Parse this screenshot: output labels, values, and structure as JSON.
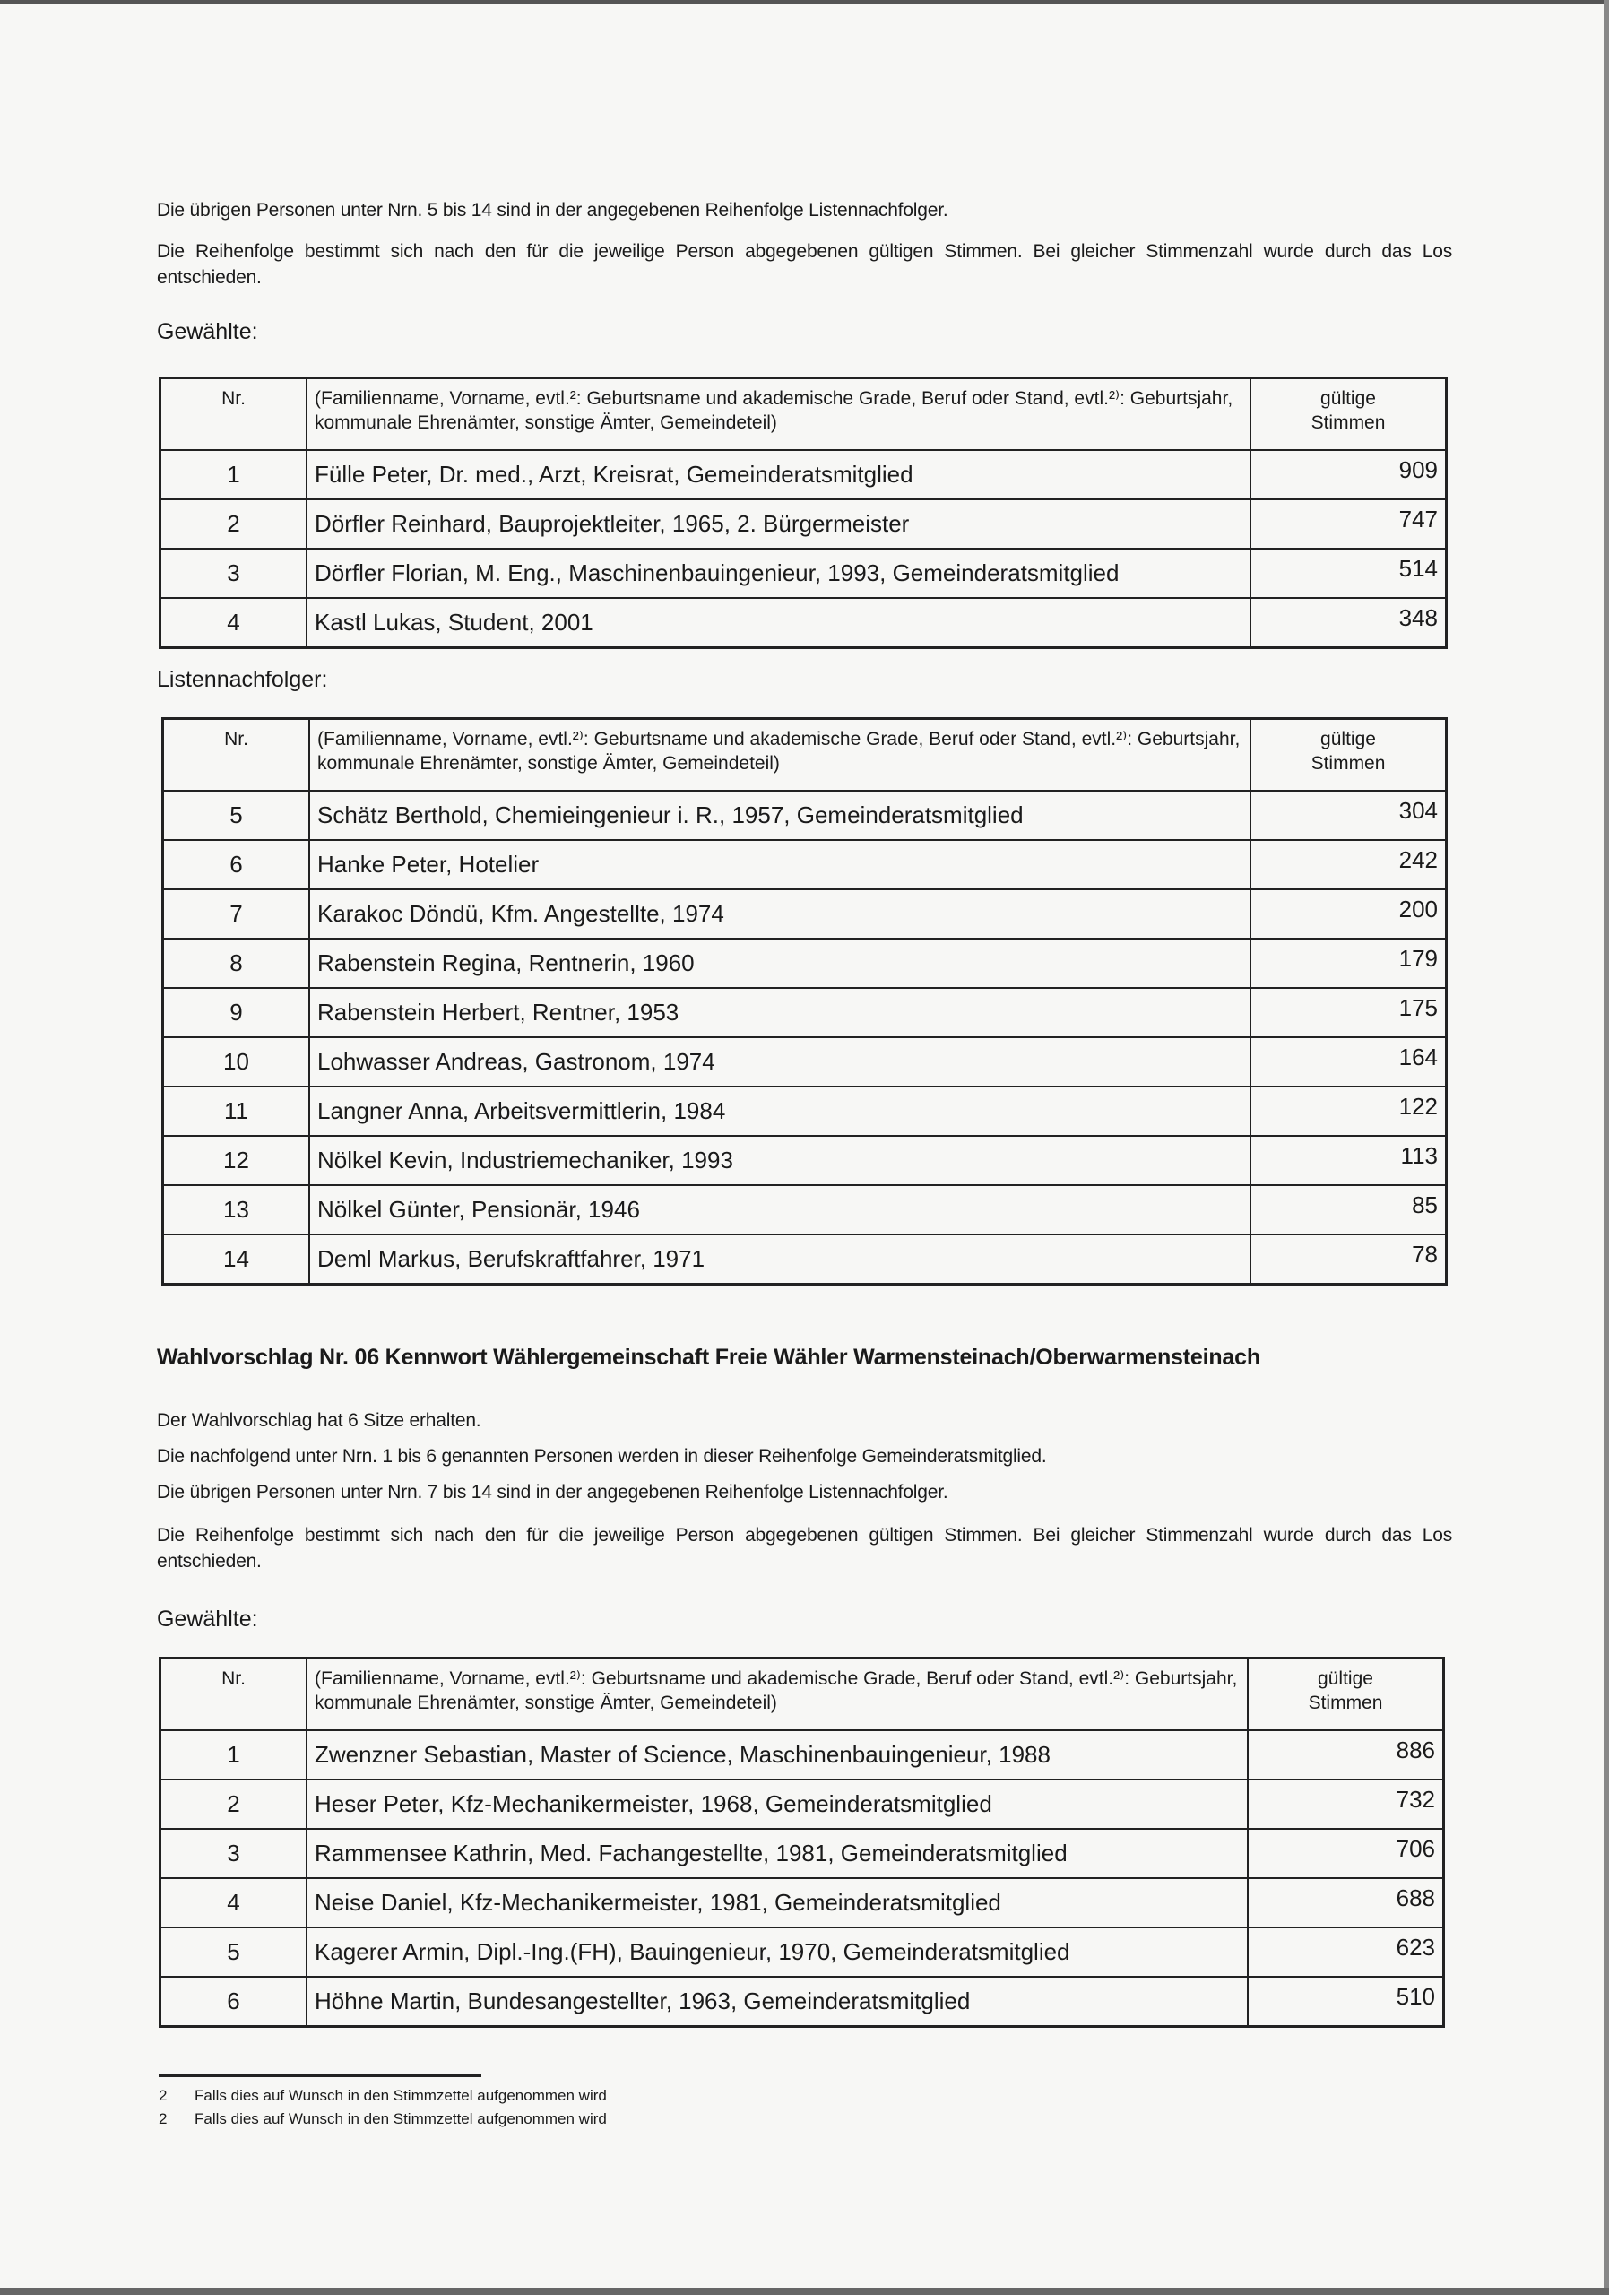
{
  "section_prev": {
    "para1": "Die übrigen Personen unter Nrn. 5 bis 14 sind in der angegebenen Reihenfolge Listennachfolger.",
    "para2": "Die Reihenfolge bestimmt sich nach den für die jeweilige Person abgegebenen gültigen Stimmen. Bei gleicher Stimmenzahl wurde durch das Los entschieden.",
    "elected_label": "Gewählte:",
    "successors_label": "Listennachfolger:"
  },
  "table_header": {
    "nr": "Nr.",
    "desc": "(Familienname, Vorname, evtl.²: Geburtsname und akademische Grade, Beruf oder Stand, evtl.²⁾: Geburtsjahr, kommunale Ehrenämter, sonstige Ämter, Gemeindeteil)",
    "desc_b": "(Familienname, Vorname, evtl.²⁾: Geburtsname und akademische Grade, Beruf oder Stand, evtl.²⁾: Geburtsjahr, kommunale Ehrenämter, sonstige Ämter, Gemeindeteil)",
    "votes": "gültige Stimmen"
  },
  "table_elected_prev": [
    {
      "nr": "1",
      "name": "Fülle Peter, Dr. med., Arzt, Kreisrat, Gemeinderatsmitglied",
      "votes": "909"
    },
    {
      "nr": "2",
      "name": "Dörfler Reinhard, Bauprojektleiter, 1965, 2. Bürgermeister",
      "votes": "747"
    },
    {
      "nr": "3",
      "name": "Dörfler Florian, M. Eng., Maschinenbauingenieur, 1993, Gemeinderatsmitglied",
      "votes": "514"
    },
    {
      "nr": "4",
      "name": "Kastl Lukas, Student, 2001",
      "votes": "348"
    }
  ],
  "table_successors_prev": [
    {
      "nr": "5",
      "name": "Schätz Berthold, Chemieingenieur i. R., 1957, Gemeinderatsmitglied",
      "votes": "304"
    },
    {
      "nr": "6",
      "name": "Hanke Peter, Hotelier",
      "votes": "242"
    },
    {
      "nr": "7",
      "name": "Karakoc Döndü, Kfm. Angestellte, 1974",
      "votes": "200"
    },
    {
      "nr": "8",
      "name": "Rabenstein Regina, Rentnerin, 1960",
      "votes": "179"
    },
    {
      "nr": "9",
      "name": "Rabenstein Herbert, Rentner, 1953",
      "votes": "175"
    },
    {
      "nr": "10",
      "name": "Lohwasser Andreas, Gastronom, 1974",
      "votes": "164"
    },
    {
      "nr": "11",
      "name": "Langner Anna, Arbeitsvermittlerin, 1984",
      "votes": "122"
    },
    {
      "nr": "12",
      "name": "Nölkel Kevin, Industriemechaniker, 1993",
      "votes": "113"
    },
    {
      "nr": "13",
      "name": "Nölkel Günter, Pensionär, 1946",
      "votes": "85"
    },
    {
      "nr": "14",
      "name": "Deml Markus, Berufskraftfahrer, 1971",
      "votes": "78"
    }
  ],
  "section_06": {
    "heading": "Wahlvorschlag Nr. 06 Kennwort Wählergemeinschaft Freie Wähler Warmensteinach/Oberwarmensteinach",
    "para1": "Der Wahlvorschlag hat 6 Sitze erhalten.",
    "para2": "Die nachfolgend unter Nrn. 1 bis 6 genannten Personen werden in dieser Reihenfolge Gemeinderatsmitglied.",
    "para3": "Die übrigen Personen unter Nrn. 7 bis 14 sind in der angegebenen Reihenfolge Listennachfolger.",
    "para4": "Die Reihenfolge bestimmt sich nach den für die jeweilige Person abgegebenen gültigen Stimmen. Bei gleicher Stimmenzahl wurde durch das Los entschieden.",
    "elected_label": "Gewählte:"
  },
  "table_elected_06": [
    {
      "nr": "1",
      "name": "Zwenzner Sebastian, Master of Science, Maschinenbauingenieur, 1988",
      "votes": "886"
    },
    {
      "nr": "2",
      "name": "Heser Peter, Kfz-Mechanikermeister, 1968, Gemeinderatsmitglied",
      "votes": "732"
    },
    {
      "nr": "3",
      "name": "Rammensee Kathrin, Med. Fachangestellte, 1981, Gemeinderatsmitglied",
      "votes": "706"
    },
    {
      "nr": "4",
      "name": "Neise Daniel, Kfz-Mechanikermeister, 1981, Gemeinderatsmitglied",
      "votes": "688"
    },
    {
      "nr": "5",
      "name": "Kagerer Armin, Dipl.-Ing.(FH), Bauingenieur, 1970, Gemeinderatsmitglied",
      "votes": "623"
    },
    {
      "nr": "6",
      "name": "Höhne Martin, Bundesangestellter, 1963, Gemeinderatsmitglied",
      "votes": "510"
    }
  ],
  "footnotes": [
    {
      "num": "2",
      "text": "Falls dies auf Wunsch in den Stimmzettel aufgenommen wird"
    },
    {
      "num": "2",
      "text": "Falls dies auf Wunsch in den Stimmzettel aufgenommen wird"
    }
  ]
}
